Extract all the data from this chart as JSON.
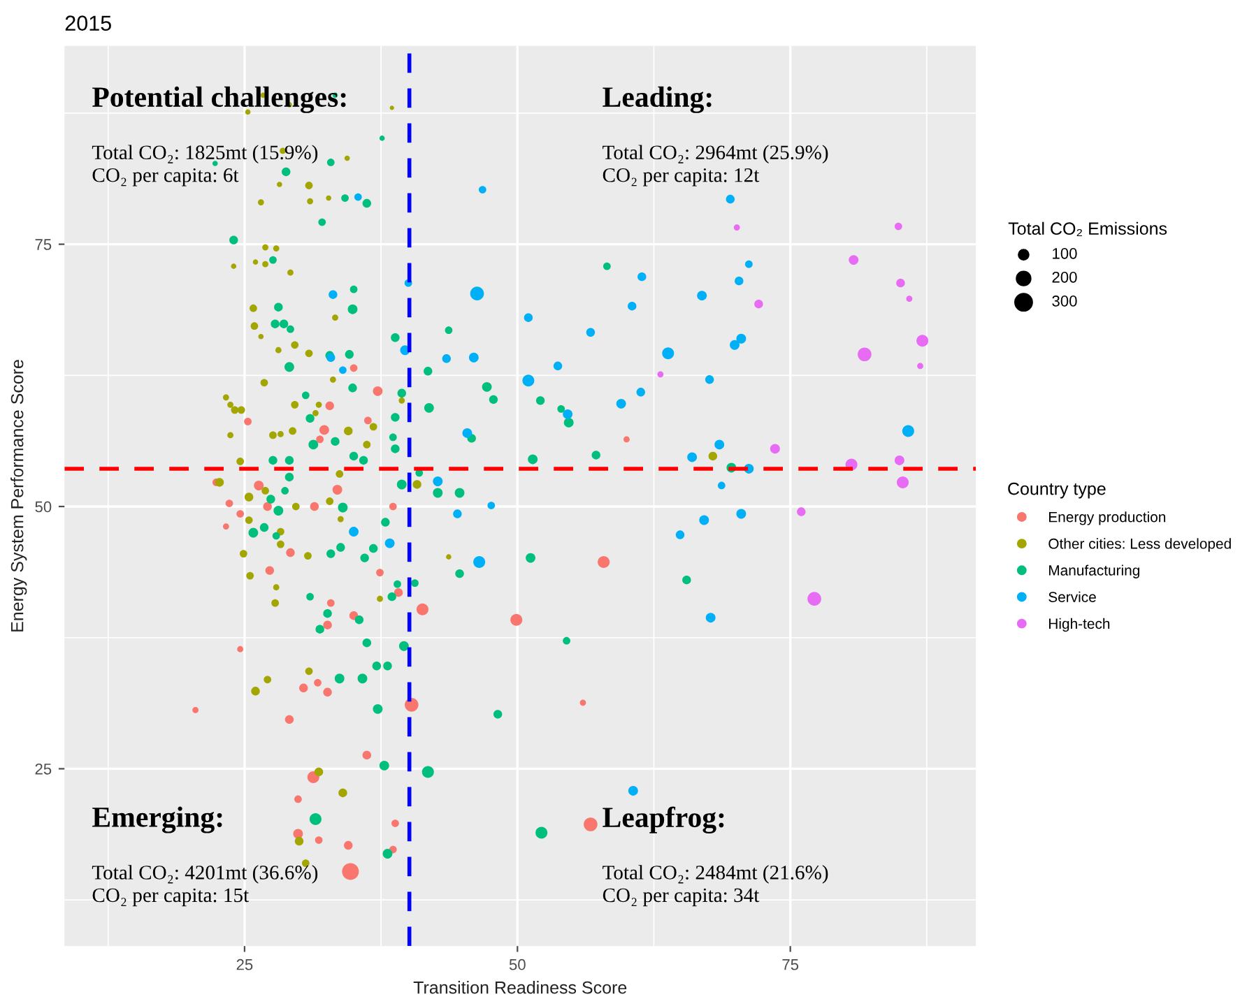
{
  "chart_data": {
    "type": "bubble",
    "title": "2015",
    "xlabel": "Transition Readiness Score",
    "ylabel": "Energy System Performance Score",
    "legend_title": "Country type",
    "xlim": [
      8.5,
      92.0
    ],
    "ylim": [
      8.1,
      93.9
    ],
    "xticks": [
      25,
      50,
      75
    ],
    "yticks": [
      25,
      50,
      75
    ],
    "grid": true,
    "legend": "right",
    "marker": "circle",
    "size_legend": [
      100,
      200,
      300
    ],
    "ref_lines": [
      {
        "axis": "x",
        "value": 40.1,
        "color": "#0000ff",
        "line_style": "dashed"
      },
      {
        "axis": "y",
        "value": 53.6,
        "color": "#ff0000",
        "line_style": "dashed"
      }
    ],
    "annotations": [
      "Potential challenges:",
      "Total CO₂: 1825mt (15.9%)\nCO₂ per capita: 6t",
      "Leading:",
      "Total CO₂: 2964mt (25.9%)\nCO₂ per capita: 12t",
      "Emerging:",
      "Total CO₂: 4201mt (36.6%)\nCO₂ per capita: 15t",
      "Leapfrog:",
      "Total CO₂: 2484mt (21.6%)\nCO₂ per capita: 34t",
      "Total CO₂ Emissions"
    ],
    "series": [
      {
        "name": "Energy production",
        "color": "#f8766d",
        "x": [
          35.0,
          37.2,
          25.3,
          32.8,
          36.3,
          32.3,
          31.9,
          26.3,
          33.5,
          22.4,
          23.6,
          24.6,
          27.1,
          23.3,
          31.4,
          38.6,
          29.2,
          27.3,
          37.4,
          39.1,
          32.9,
          35.0,
          32.6,
          24.6,
          20.5,
          30.4,
          31.7,
          32.6,
          29.1,
          40.3,
          41.3,
          36.2,
          31.3,
          29.9,
          38.8,
          29.9,
          31.8,
          34.5,
          38.6,
          34.7,
          60.0,
          49.9,
          57.9,
          56.0,
          56.7
        ],
        "values": [
          63.2,
          61.0,
          58.1,
          59.6,
          58.2,
          57.3,
          56.4,
          52.0,
          51.6,
          52.3,
          50.3,
          49.3,
          50.0,
          48.1,
          50.0,
          50.0,
          45.6,
          43.9,
          43.7,
          41.8,
          40.8,
          39.6,
          38.7,
          36.4,
          30.6,
          32.7,
          33.2,
          32.3,
          29.7,
          31.1,
          40.2,
          26.3,
          24.2,
          22.1,
          19.8,
          18.8,
          18.2,
          17.7,
          17.3,
          15.2,
          56.4,
          39.2,
          44.7,
          31.3,
          19.7
        ],
        "sizes": [
          60,
          100,
          60,
          80,
          60,
          100,
          60,
          100,
          100,
          60,
          60,
          60,
          80,
          40,
          80,
          60,
          80,
          80,
          60,
          80,
          60,
          80,
          80,
          40,
          40,
          80,
          60,
          80,
          80,
          200,
          150,
          80,
          150,
          60,
          60,
          100,
          60,
          80,
          60,
          300,
          40,
          150,
          150,
          40,
          200
        ]
      },
      {
        "name": "Other cities: Less developed",
        "color": "#a3a500",
        "x": [
          26.7,
          25.3,
          29.1,
          38.5,
          28.5,
          34.4,
          28.2,
          30.9,
          26.5,
          31.0,
          32.7,
          26.9,
          27.9,
          24.0,
          26.0,
          26.9,
          29.2,
          25.8,
          33.3,
          25.9,
          26.5,
          28.1,
          29.6,
          30.9,
          33.1,
          26.8,
          23.3,
          23.7,
          24.1,
          24.7,
          29.6,
          31.8,
          23.7,
          27.6,
          28.3,
          29.4,
          31.5,
          34.5,
          36.2,
          36.8,
          39.4,
          24.6,
          33.7,
          40.8,
          22.7,
          25.4,
          26.9,
          29.7,
          32.8,
          25.4,
          28.3,
          28.3,
          33.8,
          30.8,
          24.9,
          25.5,
          27.9,
          27.8,
          37.4,
          27.1,
          26.0,
          30.9,
          31.8,
          34.0,
          30.0,
          30.6,
          67.9,
          43.7
        ],
        "values": [
          89.2,
          87.6,
          88.3,
          88.0,
          83.9,
          83.2,
          80.7,
          80.6,
          79.0,
          79.1,
          79.4,
          74.7,
          74.6,
          72.9,
          73.3,
          73.1,
          72.3,
          68.9,
          68.0,
          67.2,
          66.2,
          64.9,
          65.4,
          64.6,
          62.1,
          61.8,
          60.4,
          59.7,
          59.2,
          59.2,
          59.7,
          59.7,
          56.8,
          56.8,
          56.9,
          57.2,
          58.9,
          57.2,
          55.9,
          57.6,
          60.1,
          54.3,
          53.1,
          52.1,
          52.3,
          50.9,
          51.5,
          50.0,
          50.5,
          48.7,
          47.6,
          46.4,
          48.8,
          45.3,
          45.5,
          43.4,
          42.3,
          40.8,
          41.2,
          33.5,
          32.4,
          34.3,
          24.7,
          22.7,
          18.1,
          16.0,
          54.8,
          45.2
        ],
        "sizes": [
          30,
          30,
          30,
          20,
          40,
          30,
          30,
          60,
          40,
          40,
          30,
          40,
          40,
          30,
          30,
          40,
          40,
          60,
          40,
          60,
          30,
          40,
          60,
          60,
          40,
          60,
          40,
          40,
          60,
          60,
          60,
          40,
          40,
          60,
          40,
          60,
          40,
          80,
          60,
          60,
          40,
          60,
          60,
          80,
          80,
          80,
          60,
          60,
          60,
          60,
          60,
          60,
          40,
          60,
          60,
          60,
          40,
          60,
          40,
          60,
          80,
          60,
          80,
          80,
          80,
          60,
          80,
          30
        ]
      },
      {
        "name": "Manufacturing",
        "color": "#00bf7d",
        "x": [
          33.3,
          37.6,
          22.3,
          32.9,
          28.8,
          34.2,
          36.2,
          32.1,
          24.0,
          27.6,
          35.0,
          28.1,
          34.9,
          27.8,
          28.6,
          29.2,
          38.8,
          29.1,
          32.8,
          34.6,
          30.6,
          34.9,
          39.4,
          41.8,
          41.9,
          31.0,
          38.8,
          33.3,
          31.3,
          38.6,
          38.8,
          35.9,
          27.6,
          29.1,
          35.0,
          29.1,
          39.4,
          27.4,
          28.7,
          28.1,
          25.8,
          26.8,
          27.9,
          34.0,
          37.9,
          32.9,
          33.8,
          36.0,
          36.8,
          39.0,
          40.6,
          38.5,
          31.0,
          32.6,
          35.5,
          31.9,
          36.2,
          39.6,
          37.1,
          38.1,
          33.7,
          35.8,
          37.2,
          37.8,
          41.8,
          31.5,
          38.1,
          58.2,
          43.7,
          47.2,
          47.8,
          52.1,
          54.0,
          54.7,
          45.8,
          57.2,
          51.4,
          69.6,
          41.0,
          42.7,
          44.7,
          51.2,
          44.7,
          65.5,
          54.5,
          48.2,
          52.2
        ],
        "values": [
          89.2,
          85.1,
          82.7,
          82.8,
          81.9,
          79.4,
          78.9,
          77.1,
          75.4,
          73.5,
          70.7,
          69.0,
          68.8,
          67.4,
          67.4,
          66.9,
          66.1,
          63.3,
          64.4,
          64.5,
          60.6,
          61.3,
          60.8,
          62.9,
          59.4,
          58.4,
          58.5,
          56.2,
          55.9,
          56.6,
          55.5,
          54.4,
          54.4,
          54.4,
          54.8,
          52.8,
          52.1,
          50.7,
          51.5,
          49.6,
          47.5,
          48.0,
          47.2,
          49.9,
          48.5,
          45.5,
          46.1,
          45.1,
          46.0,
          42.6,
          42.7,
          41.4,
          41.4,
          39.8,
          39.2,
          38.3,
          37.0,
          36.7,
          34.8,
          34.8,
          33.6,
          33.6,
          30.7,
          25.3,
          24.7,
          20.2,
          16.9,
          72.9,
          66.8,
          61.4,
          60.2,
          60.1,
          59.3,
          58.0,
          56.5,
          54.9,
          54.5,
          53.7,
          53.2,
          51.3,
          51.3,
          45.1,
          43.6,
          43.0,
          37.2,
          30.2,
          18.9
        ],
        "sizes": [
          30,
          30,
          30,
          60,
          80,
          60,
          80,
          60,
          80,
          60,
          60,
          80,
          100,
          80,
          80,
          60,
          80,
          100,
          80,
          80,
          60,
          80,
          80,
          80,
          100,
          80,
          80,
          80,
          100,
          60,
          80,
          80,
          80,
          80,
          80,
          80,
          100,
          80,
          60,
          100,
          100,
          80,
          60,
          100,
          80,
          80,
          80,
          80,
          80,
          60,
          60,
          80,
          60,
          80,
          80,
          80,
          80,
          100,
          80,
          80,
          100,
          100,
          100,
          100,
          150,
          150,
          100,
          60,
          60,
          100,
          80,
          80,
          60,
          100,
          80,
          80,
          100,
          100,
          60,
          100,
          100,
          100,
          80,
          80,
          60,
          80,
          150
        ]
      },
      {
        "name": "Service",
        "color": "#00b0f6",
        "x": [
          35.4,
          33.1,
          40.0,
          32.9,
          34.0,
          39.7,
          35.0,
          38.3,
          46.8,
          69.5,
          71.2,
          70.3,
          61.4,
          46.3,
          60.5,
          66.9,
          51.0,
          56.7,
          69.9,
          70.5,
          43.5,
          46.0,
          63.8,
          53.7,
          51.0,
          67.6,
          61.3,
          59.5,
          54.6,
          45.4,
          85.8,
          68.5,
          66.0,
          71.2,
          42.7,
          68.7,
          47.6,
          44.5,
          70.5,
          67.1,
          64.9,
          46.5,
          67.7,
          60.6
        ],
        "values": [
          79.5,
          70.2,
          71.3,
          64.2,
          63.0,
          64.9,
          47.6,
          46.5,
          80.2,
          79.3,
          73.1,
          71.5,
          71.9,
          70.3,
          69.1,
          70.1,
          68.0,
          66.6,
          65.4,
          66.0,
          64.1,
          64.2,
          64.6,
          63.4,
          62.0,
          62.1,
          60.9,
          59.8,
          58.8,
          57.0,
          57.2,
          55.9,
          54.7,
          53.6,
          52.4,
          52.0,
          50.1,
          49.3,
          49.3,
          48.7,
          47.3,
          44.7,
          39.4,
          22.9
        ],
        "sizes": [
          60,
          80,
          60,
          80,
          60,
          100,
          100,
          100,
          60,
          80,
          60,
          80,
          80,
          200,
          80,
          100,
          80,
          80,
          100,
          100,
          80,
          100,
          150,
          80,
          150,
          80,
          80,
          100,
          100,
          100,
          150,
          100,
          100,
          100,
          100,
          60,
          60,
          80,
          100,
          100,
          80,
          150,
          100,
          100
        ]
      },
      {
        "name": "High-tech",
        "color": "#e76bf3",
        "x": [
          70.1,
          84.9,
          80.8,
          85.1,
          85.9,
          72.1,
          87.1,
          81.8,
          86.9,
          63.1,
          73.6,
          80.6,
          85.0,
          85.3,
          76.0,
          77.2
        ],
        "values": [
          76.6,
          76.7,
          73.5,
          71.3,
          69.8,
          69.3,
          65.8,
          64.5,
          63.4,
          62.6,
          55.5,
          54.0,
          54.4,
          52.3,
          49.5,
          41.2
        ],
        "sizes": [
          40,
          60,
          100,
          80,
          40,
          80,
          150,
          200,
          40,
          40,
          100,
          150,
          100,
          150,
          80,
          200
        ]
      }
    ]
  }
}
